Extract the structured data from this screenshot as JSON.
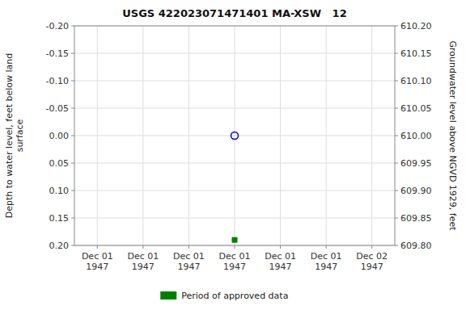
{
  "chart_data": {
    "type": "scatter",
    "title": "USGS 422023071471401 MA-XSW   12",
    "ylabel": "Depth to water level, feet below land\nsurface",
    "y2label": "Groundwater level above NGVD 1929, feet",
    "categories": [
      "Dec 01\n1947",
      "Dec 01\n1947",
      "Dec 01\n1947",
      "Dec 01\n1947",
      "Dec 01\n1947",
      "Dec 01\n1947",
      "Dec 02\n1947"
    ],
    "ylim": [
      0.2,
      -0.2
    ],
    "yticks": [
      {
        "value": -0.2,
        "label": "-0.20"
      },
      -0.15,
      {
        "value": -0.1,
        "label": "-0.10"
      },
      -0.05,
      {
        "value": 0.0,
        "label": "0.00"
      },
      0.05,
      {
        "value": 0.1,
        "label": "0.10"
      },
      0.15,
      {
        "value": 0.2,
        "label": "0.20"
      }
    ],
    "y2lim": [
      609.8,
      610.2
    ],
    "y2ticks": [
      {
        "value": 610.2,
        "label": "610.20"
      },
      610.15,
      {
        "value": 610.1,
        "label": "610.10"
      },
      610.05,
      {
        "value": 610.0,
        "label": "610.00"
      },
      609.95,
      {
        "value": 609.9,
        "label": "609.90"
      },
      609.85,
      {
        "value": 609.8,
        "label": "609.80"
      }
    ],
    "series": [
      {
        "color": "#0000cc",
        "marker": "circle-open",
        "axis": "y",
        "values": [
          null,
          null,
          null,
          0.0,
          null,
          null,
          null
        ]
      },
      {
        "name": "Period of approved data",
        "color": "#008000",
        "marker": "square",
        "axis": "y",
        "values": [
          null,
          null,
          null,
          0.19,
          null,
          null,
          null
        ]
      }
    ],
    "grid": true,
    "legend": "bottom"
  }
}
